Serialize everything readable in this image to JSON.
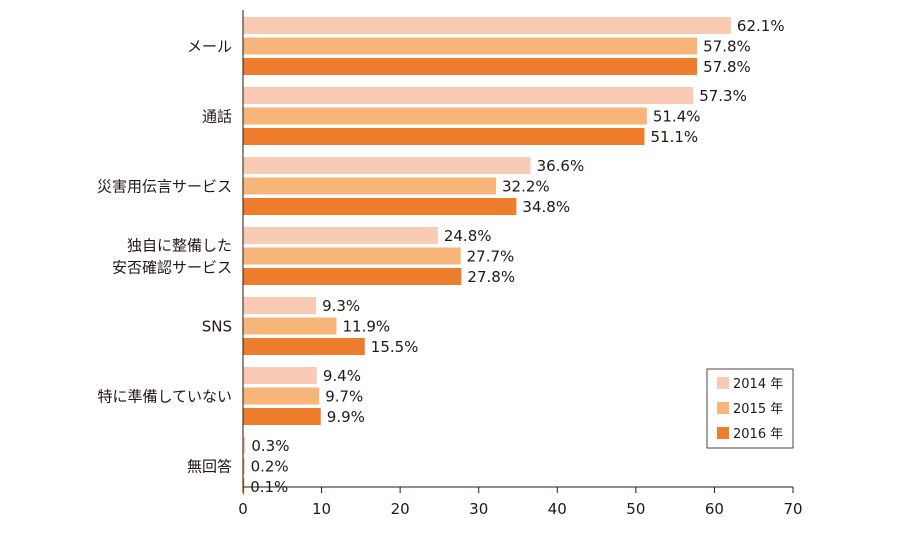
{
  "chart_data": {
    "type": "bar",
    "orientation": "horizontal",
    "title": "",
    "xlabel": "",
    "ylabel": "",
    "xlim": [
      0,
      70
    ],
    "x_ticks": [
      0,
      10,
      20,
      30,
      40,
      50,
      60,
      70
    ],
    "grid": false,
    "legend_position": "bottom-right",
    "categories": [
      [
        "メール"
      ],
      [
        "通話"
      ],
      [
        "災害用伝言サービス"
      ],
      [
        "独自に整備した",
        "安否確認サービス"
      ],
      [
        "SNS"
      ],
      [
        "特に準備していない"
      ],
      [
        "無回答"
      ]
    ],
    "series": [
      {
        "name": "2014 年",
        "color": "#f9cbb5",
        "values": [
          62.1,
          57.3,
          36.6,
          24.8,
          9.3,
          9.4,
          0.3
        ]
      },
      {
        "name": "2015 年",
        "color": "#f7b57a",
        "values": [
          57.8,
          51.4,
          32.2,
          27.7,
          11.9,
          9.7,
          0.2
        ]
      },
      {
        "name": "2016 年",
        "color": "#ee7d2e",
        "values": [
          57.8,
          51.1,
          34.8,
          27.8,
          15.5,
          9.9,
          0.1
        ]
      }
    ],
    "value_suffix": "%"
  }
}
